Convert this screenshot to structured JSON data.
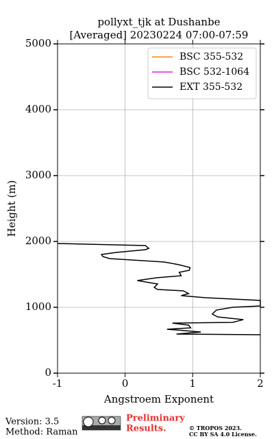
{
  "chart_data": {
    "type": "line",
    "title": "pollyxt_tjk at Dushanbe",
    "subtitle": "[Averaged] 20230224 07:00-07:59",
    "xlabel": "Angstroem Exponent",
    "ylabel": "Height (m)",
    "xlim": [
      -1,
      2
    ],
    "xticks": [
      -1,
      0,
      1,
      2
    ],
    "ylim": [
      0,
      5000
    ],
    "yticks": [
      0,
      1000,
      2000,
      3000,
      4000,
      5000
    ],
    "grid": true,
    "legend": "upper right",
    "series": [
      {
        "name": "BSC 355-532",
        "color": "#ff7f0e",
        "x": [],
        "y": []
      },
      {
        "name": "BSC 532-1064",
        "color": "#e020e0",
        "x": [],
        "y": []
      },
      {
        "name": "EXT 355-532",
        "color": "#000000",
        "x": [
          -1,
          0.3,
          0.35,
          0.3,
          -0.13,
          -0.35,
          -0.33,
          -0.23,
          0.58,
          0.8,
          0.96,
          0.95,
          0.8,
          0.83,
          0.46,
          0.18,
          0.48,
          0.43,
          0.48,
          0.86,
          0.94,
          0.83,
          1.19,
          2.0,
          2.0,
          1.59,
          1.35,
          1.29,
          1.37,
          1.75,
          1.59,
          0.7,
          0.94,
          0.97,
          0.62,
          1.12,
          0.76,
          2.0
        ],
        "y": [
          1969,
          1938,
          1896,
          1875,
          1833,
          1802,
          1771,
          1740,
          1688,
          1646,
          1604,
          1563,
          1531,
          1479,
          1448,
          1406,
          1354,
          1302,
          1271,
          1250,
          1208,
          1177,
          1146,
          1104,
          1021,
          1000,
          958,
          896,
          854,
          813,
          771,
          760,
          729,
          688,
          667,
          625,
          594,
          583
        ]
      }
    ]
  },
  "footer": {
    "version": "Version: 3.5",
    "method": "Method: Raman",
    "preliminary": "Preliminary",
    "results": "Results.",
    "copyright": "© TROPOS 2023.",
    "license": "CC BY SA 4.0 License."
  }
}
